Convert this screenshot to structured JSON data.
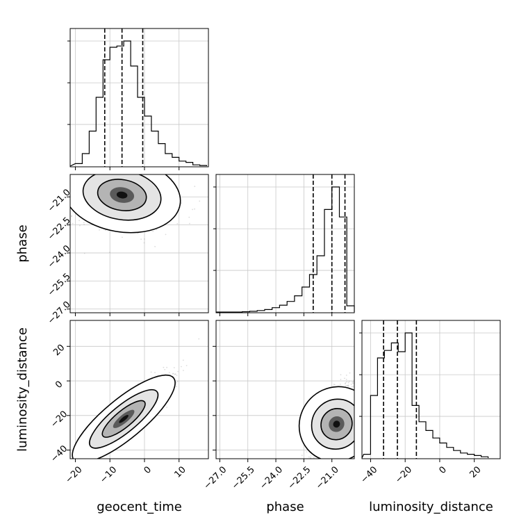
{
  "chart_data": {
    "type": "corner",
    "parameters": [
      "geocent_time",
      "phase",
      "luminosity_distance"
    ],
    "axis_labels": {
      "geocent_time": "geocent_time",
      "phase": "phase",
      "luminosity_distance": "luminosity_distance"
    },
    "grid": true,
    "ticks": {
      "geocent_time": {
        "values": [
          -20,
          -10,
          0,
          10
        ],
        "labels": [
          "−20",
          "−10",
          "0",
          "10"
        ]
      },
      "phase": {
        "values": [
          -27.0,
          -25.5,
          -24.0,
          -22.5,
          -21.0
        ],
        "labels": [
          "−27.0",
          "−25.5",
          "−24.0",
          "−22.5",
          "−21.0"
        ]
      },
      "luminosity_distance": {
        "values": [
          -40,
          -20,
          0,
          20
        ],
        "labels": [
          "−40",
          "−20",
          "0",
          "20"
        ]
      }
    },
    "ranges": {
      "geocent_time": [
        -21.5,
        18.5
      ],
      "phase": [
        -27.2,
        -19.8
      ],
      "luminosity_distance": [
        -45,
        35
      ]
    },
    "histograms": [
      {
        "parameter": "geocent_time",
        "bin_edges": [
          -20,
          -18,
          -16,
          -14,
          -12,
          -10,
          -8,
          -6,
          -4,
          -2,
          0,
          2,
          4,
          6,
          8,
          10,
          12,
          14,
          16,
          18
        ],
        "counts": [
          0.02,
          0.1,
          0.28,
          0.55,
          0.85,
          0.95,
          0.96,
          1.0,
          0.8,
          0.55,
          0.4,
          0.28,
          0.18,
          0.1,
          0.07,
          0.04,
          0.03,
          0.01,
          0.005
        ],
        "quantiles": [
          -11.5,
          -6.5,
          -0.5
        ]
      },
      {
        "parameter": "phase",
        "bin_edges": [
          -27.0,
          -26.6,
          -26.2,
          -25.8,
          -25.4,
          -25.0,
          -24.6,
          -24.2,
          -23.8,
          -23.4,
          -23.0,
          -22.6,
          -22.2,
          -21.8,
          -21.4,
          -21.0,
          -20.6,
          -20.2,
          -19.8
        ],
        "counts": [
          0.0,
          0.0,
          0.0,
          0.003,
          0.006,
          0.012,
          0.02,
          0.035,
          0.055,
          0.085,
          0.13,
          0.2,
          0.3,
          0.45,
          0.82,
          1.0,
          0.76,
          0.05
        ],
        "quantiles": [
          -22.0,
          -21.0,
          -20.3
        ]
      },
      {
        "parameter": "luminosity_distance",
        "bin_edges": [
          -44,
          -40,
          -36,
          -32,
          -28,
          -24,
          -20,
          -16,
          -12,
          -8,
          -4,
          0,
          4,
          8,
          12,
          16,
          20,
          24,
          28
        ],
        "counts": [
          0.03,
          0.5,
          0.8,
          0.86,
          0.92,
          0.85,
          1.0,
          0.42,
          0.29,
          0.22,
          0.16,
          0.12,
          0.085,
          0.06,
          0.04,
          0.03,
          0.02,
          0.01
        ],
        "quantiles": [
          -32.5,
          -24.5,
          -13.5
        ]
      }
    ],
    "contour_panels": [
      {
        "x": "geocent_time",
        "y": "phase",
        "mean": [
          -6.5,
          -20.9
        ],
        "sd": [
          7.0,
          0.85
        ],
        "corr": -0.25
      },
      {
        "x": "geocent_time",
        "y": "luminosity_distance",
        "mean": [
          -6.0,
          -22.0
        ],
        "sd": [
          6.0,
          11.0
        ],
        "corr": 0.9
      },
      {
        "x": "phase",
        "y": "luminosity_distance",
        "mean": [
          -20.75,
          -25.0
        ],
        "sd": [
          0.6,
          11.0
        ],
        "corr": 0.6
      }
    ]
  }
}
